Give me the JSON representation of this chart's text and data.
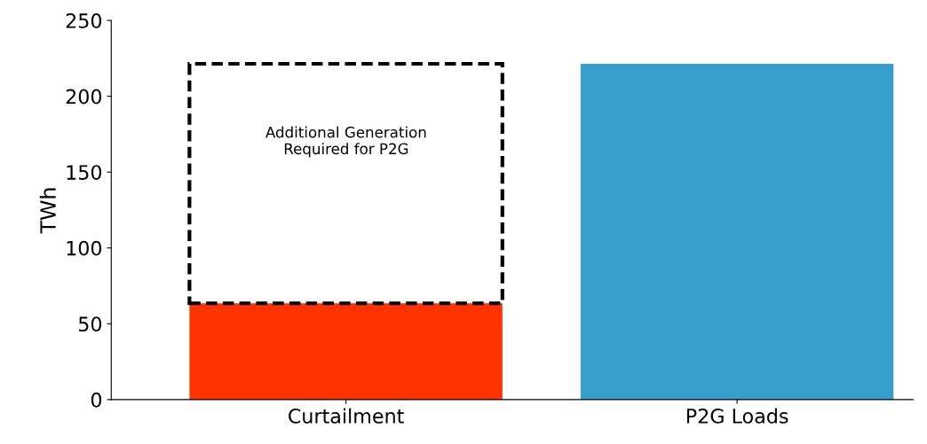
{
  "chart_data": {
    "type": "bar",
    "stacked": true,
    "ylabel": "TWh",
    "categories": [
      "Curtailment",
      "P2G Loads"
    ],
    "series": [
      {
        "colors": [
          "#ff3300",
          "#369fce"
        ],
        "values": [
          63.5,
          221.4
        ]
      },
      {
        "color": "#000000",
        "line_style": "dashed",
        "values": [
          157.9,
          null
        ]
      }
    ],
    "annotations": [
      "Additional Generation\nRequired for P2G"
    ],
    "ylim": [
      0,
      250
    ],
    "yticks": [
      0,
      50,
      100,
      150,
      200,
      250
    ],
    "grid": false
  }
}
